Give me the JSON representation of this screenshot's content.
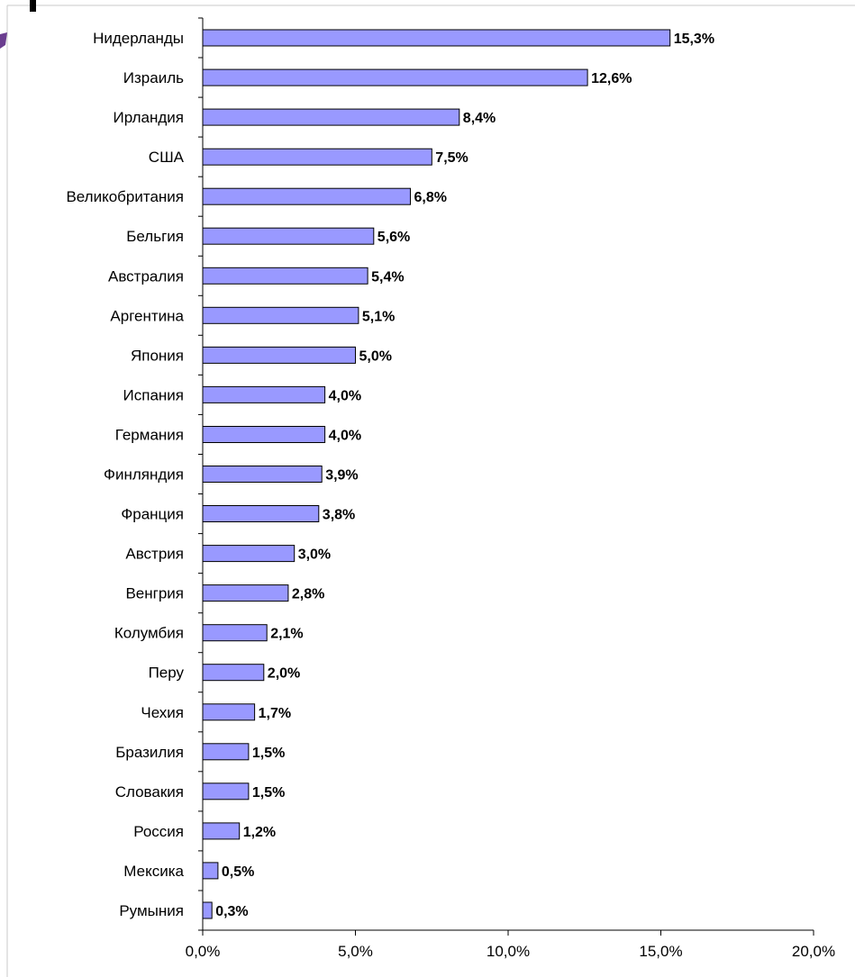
{
  "chart_data": {
    "type": "bar",
    "orientation": "horizontal",
    "title": "",
    "xlabel": "",
    "ylabel": "",
    "categories": [
      "Нидерланды",
      "Израиль",
      "Ирландия",
      "США",
      "Великобритания",
      "Бельгия",
      "Австралия",
      "Аргентина",
      "Япония",
      "Испания",
      "Германия",
      "Финляндия",
      "Франция",
      "Австрия",
      "Венгрия",
      "Колумбия",
      "Перу",
      "Чехия",
      "Бразилия",
      "Словакия",
      "Россия",
      "Мексика",
      "Румыния"
    ],
    "values": [
      15.3,
      12.6,
      8.4,
      7.5,
      6.8,
      5.6,
      5.4,
      5.1,
      5.0,
      4.0,
      4.0,
      3.9,
      3.8,
      3.0,
      2.8,
      2.1,
      2.0,
      1.7,
      1.5,
      1.5,
      1.2,
      0.5,
      0.3
    ],
    "data_labels": [
      "15,3%",
      "12,6%",
      "8,4%",
      "7,5%",
      "6,8%",
      "5,6%",
      "5,4%",
      "5,1%",
      "5,0%",
      "4,0%",
      "4,0%",
      "3,9%",
      "3,8%",
      "3,0%",
      "2,8%",
      "2,1%",
      "2,0%",
      "1,7%",
      "1,5%",
      "1,5%",
      "1,2%",
      "0,5%",
      "0,3%"
    ],
    "x_ticks": [
      "0,0%",
      "5,0%",
      "10,0%",
      "15,0%",
      "20,0%"
    ],
    "xlim": [
      0,
      20
    ],
    "grid": false,
    "bar_color": "#9999ff"
  }
}
